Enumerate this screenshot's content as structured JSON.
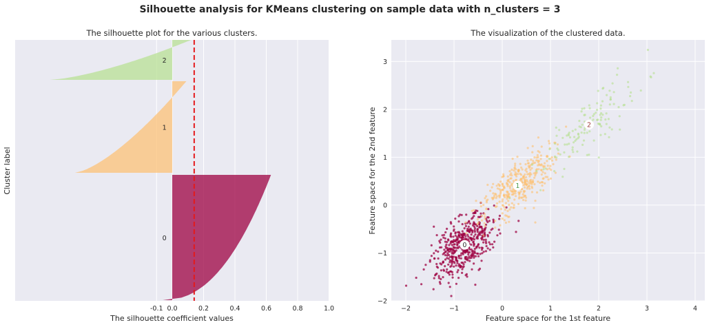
{
  "figure": {
    "suptitle": "Silhouette analysis for KMeans clustering on sample data with n_clusters = 3"
  },
  "colors": {
    "cluster_0": "#9e0142",
    "cluster_1": "#fdbf6f",
    "cluster_2": "#b5e08f",
    "average_line": "#e41a1c",
    "axes_bg": "#eaeaf2",
    "grid": "#ffffff"
  },
  "chart_data": [
    {
      "type": "area",
      "title": "The silhouette plot for the various clusters.",
      "xlabel": "The silhouette coefficient values",
      "ylabel": "Cluster label",
      "xlim": [
        -0.1,
        1.0
      ],
      "xticks": [
        "-0.1",
        "0.0",
        "0.2",
        "0.4",
        "0.6",
        "0.8",
        "1.0"
      ],
      "xtick_values": [
        -0.1,
        0.0,
        0.2,
        0.4,
        0.6,
        0.8,
        1.0
      ],
      "average_silhouette": 0.14,
      "grid": true,
      "clusters": [
        {
          "label": "0",
          "size": 800,
          "max": 0.63,
          "min": -0.06
        },
        {
          "label": "1",
          "size": 600,
          "max": 0.09,
          "min": -0.62
        },
        {
          "label": "2",
          "size": 260,
          "max": 0.12,
          "min": -0.78
        }
      ]
    },
    {
      "type": "scatter",
      "title": "The visualization of the clustered data.",
      "xlabel": "Feature space for the 1st feature",
      "ylabel": "Feature space for the 2nd feature",
      "xlim": [
        -2.3,
        4.2
      ],
      "ylim": [
        -2.0,
        3.45
      ],
      "xticks": [
        "−2",
        "−1",
        "0",
        "1",
        "2",
        "3",
        "4"
      ],
      "xtick_values": [
        -2,
        -1,
        0,
        1,
        2,
        3,
        4
      ],
      "yticks": [
        "−2",
        "−1",
        "0",
        "1",
        "2",
        "3"
      ],
      "ytick_values": [
        -2,
        -1,
        0,
        1,
        2,
        3
      ],
      "grid": true,
      "centers": [
        {
          "label": "0",
          "x": -0.78,
          "y": -0.83
        },
        {
          "label": "1",
          "x": 0.32,
          "y": 0.41
        },
        {
          "label": "2",
          "x": 1.8,
          "y": 1.68
        }
      ],
      "series": [
        {
          "cluster": "0",
          "count": 500,
          "center": [
            -0.78,
            -0.83
          ],
          "spread_along": 0.42,
          "spread_across": 0.22
        },
        {
          "cluster": "1",
          "count": 380,
          "center": [
            0.32,
            0.41
          ],
          "spread_along": 0.5,
          "spread_across": 0.2
        },
        {
          "cluster": "2",
          "count": 130,
          "center": [
            1.8,
            1.68
          ],
          "spread_along": 0.75,
          "spread_across": 0.2
        }
      ]
    }
  ]
}
